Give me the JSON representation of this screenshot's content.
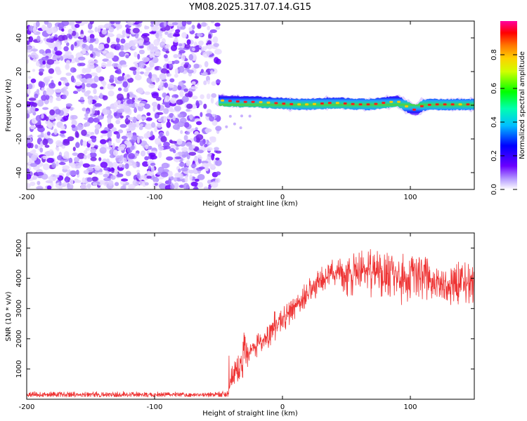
{
  "figure_title": "YM08.2025.317.07.14.G15",
  "colors": {
    "axis": "#000000",
    "snr_line": "#ee3333",
    "scatter": "#7722ee"
  },
  "chart_data": [
    {
      "id": "spectrogram",
      "type": "heatmap",
      "title": "",
      "xlabel": "Height of straight line (km)",
      "ylabel": "Frequency (Hz)",
      "xlim": [
        -200,
        150
      ],
      "ylim": [
        -50,
        50
      ],
      "xticks": [
        -200,
        -100,
        0,
        100
      ],
      "yticks": [
        -40,
        -20,
        0,
        20,
        40
      ],
      "colorbar": {
        "label": "Normalized spectral amplitude",
        "range": [
          0,
          1
        ],
        "ticks": [
          0.0,
          0.2,
          0.4,
          0.6,
          0.8
        ]
      },
      "noise_region_x": [
        -200,
        -50
      ],
      "signal_track": [
        {
          "x": -50,
          "freq": 3.0,
          "amp": 0.9
        },
        {
          "x": -40,
          "freq": 2.5,
          "amp": 0.9
        },
        {
          "x": -30,
          "freq": 2.0,
          "amp": 0.95
        },
        {
          "x": -20,
          "freq": 2.0,
          "amp": 0.95
        },
        {
          "x": -10,
          "freq": 1.5,
          "amp": 0.9
        },
        {
          "x": 0,
          "freq": 1.0,
          "amp": 0.95
        },
        {
          "x": 10,
          "freq": 0.5,
          "amp": 0.95
        },
        {
          "x": 20,
          "freq": 0.5,
          "amp": 0.95
        },
        {
          "x": 30,
          "freq": 1.0,
          "amp": 0.95
        },
        {
          "x": 40,
          "freq": 1.5,
          "amp": 0.9
        },
        {
          "x": 50,
          "freq": 1.0,
          "amp": 0.95
        },
        {
          "x": 60,
          "freq": 0.5,
          "amp": 0.95
        },
        {
          "x": 70,
          "freq": 0.5,
          "amp": 0.95
        },
        {
          "x": 80,
          "freq": 1.5,
          "amp": 0.9
        },
        {
          "x": 90,
          "freq": 2.5,
          "amp": 0.95
        },
        {
          "x": 100,
          "freq": -2.0,
          "amp": 0.9
        },
        {
          "x": 105,
          "freq": -3.0,
          "amp": 0.85
        },
        {
          "x": 110,
          "freq": 0.0,
          "amp": 0.9
        },
        {
          "x": 120,
          "freq": 0.5,
          "amp": 0.95
        },
        {
          "x": 130,
          "freq": 0.5,
          "amp": 0.95
        },
        {
          "x": 140,
          "freq": 0.5,
          "amp": 0.95
        },
        {
          "x": 150,
          "freq": 0.5,
          "amp": 0.9
        }
      ]
    },
    {
      "id": "snr",
      "type": "line",
      "title": "",
      "xlabel": "Height of straight line (km)",
      "ylabel": "SNR (10 * v/v)",
      "xlim": [
        -200,
        150
      ],
      "ylim": [
        0,
        5500
      ],
      "xticks": [
        -200,
        -100,
        0,
        100
      ],
      "yticks": [
        1000,
        2000,
        3000,
        4000,
        5000
      ],
      "series": [
        {
          "name": "SNR",
          "x": [
            -200,
            -150,
            -100,
            -50,
            -42,
            -40,
            -38,
            -35,
            -30,
            -25,
            -20,
            -15,
            -10,
            -5,
            0,
            5,
            10,
            15,
            20,
            25,
            30,
            40,
            50,
            60,
            70,
            80,
            90,
            100,
            110,
            120,
            130,
            140,
            150
          ],
          "values": [
            150,
            150,
            150,
            150,
            200,
            600,
            800,
            1000,
            1300,
            1600,
            1800,
            1950,
            2150,
            2400,
            2600,
            2800,
            3050,
            3300,
            3550,
            3800,
            4000,
            4100,
            4050,
            4150,
            4200,
            4100,
            4050,
            4000,
            4050,
            3950,
            3850,
            3800,
            3850
          ],
          "noise_amplitude": [
            120,
            120,
            120,
            120,
            200,
            500,
            700,
            600,
            600,
            500,
            500,
            500,
            600,
            600,
            500,
            500,
            500,
            500,
            500,
            500,
            600,
            600,
            700,
            800,
            900,
            900,
            1000,
            1000,
            900,
            800,
            800,
            900,
            800
          ]
        }
      ]
    }
  ]
}
